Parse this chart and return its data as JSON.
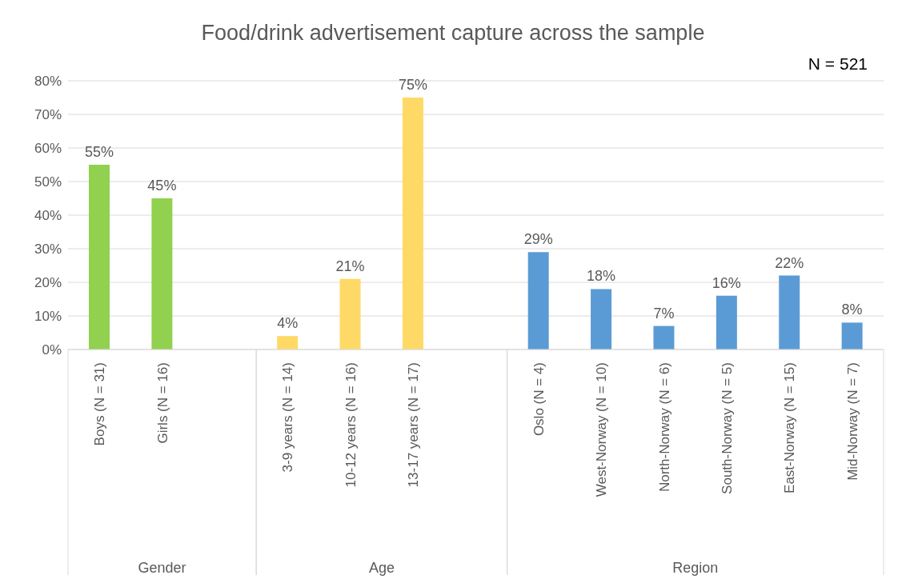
{
  "chart_data": {
    "type": "bar",
    "title": "Food/drink advertisement capture across the sample",
    "categories": [
      "Boys (N = 31)",
      "Girls (N = 16)",
      null,
      "3-9 years (N = 14)",
      "10-12 years (N = 16)",
      "13-17 years (N = 17)",
      null,
      "Oslo (N = 4)",
      "West-Norway (N = 10)",
      "North-Norway (N = 6)",
      "South-Norway (N = 5)",
      "East-Norway (N = 15)",
      "Mid-Norway (N = 7)"
    ],
    "values": [
      55,
      45,
      null,
      4,
      21,
      75,
      null,
      29,
      18,
      7,
      16,
      22,
      8
    ],
    "value_labels": [
      "55%",
      "45%",
      null,
      "4%",
      "21%",
      "75%",
      null,
      "29%",
      "18%",
      "7%",
      "16%",
      "22%",
      "8%"
    ],
    "colors": [
      "#92d050",
      "#92d050",
      "#92d050",
      "#ffd966",
      "#ffd966",
      "#ffd966",
      "#ffd966",
      "#5b9bd5",
      "#5b9bd5",
      "#5b9bd5",
      "#5b9bd5",
      "#5b9bd5",
      "#5b9bd5"
    ],
    "ylim": [
      0,
      80
    ],
    "yticks": [
      {
        "value": 0,
        "label": "0%"
      },
      {
        "value": 10,
        "label": "10%"
      },
      {
        "value": 20,
        "label": "20%"
      },
      {
        "value": 30,
        "label": "30%"
      },
      {
        "value": 40,
        "label": "40%"
      },
      {
        "value": 50,
        "label": "50%"
      },
      {
        "value": 60,
        "label": "60%"
      },
      {
        "value": 70,
        "label": "70%"
      },
      {
        "value": 80,
        "label": "80%"
      }
    ],
    "grid": "y",
    "annotations": [
      "Gender",
      "Age",
      "Region",
      "N = 521"
    ]
  }
}
